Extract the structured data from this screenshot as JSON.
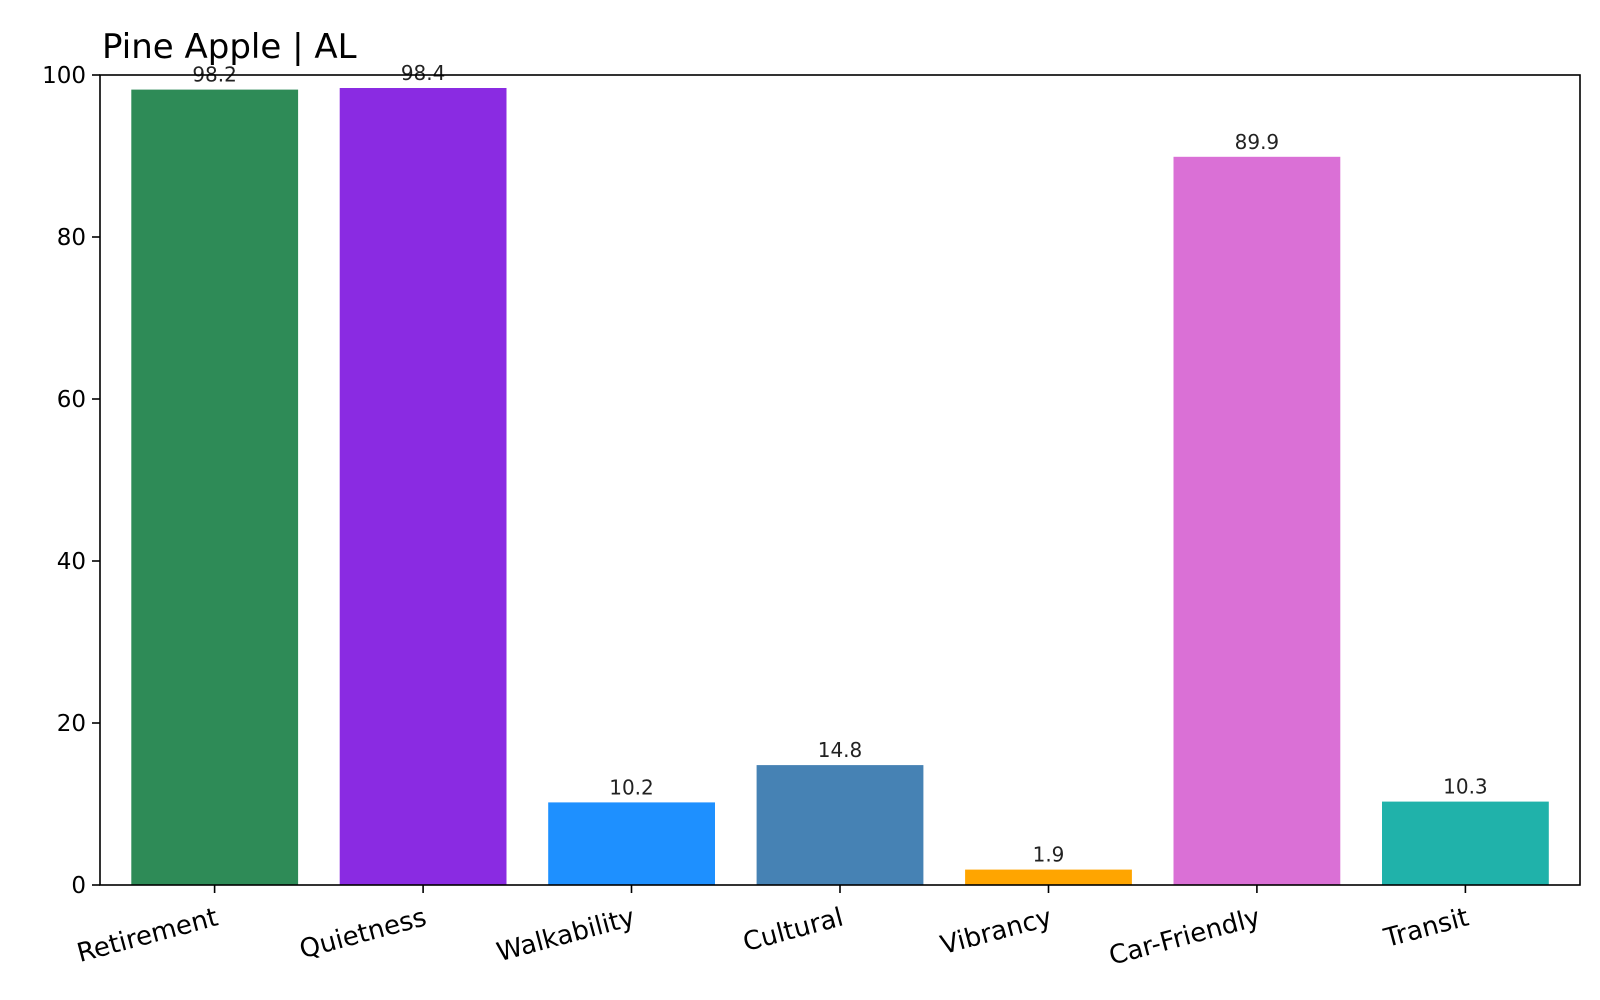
{
  "chart_data": {
    "type": "bar",
    "title": "Pine Apple | AL",
    "xlabel": "",
    "ylabel": "",
    "categories": [
      "Retirement",
      "Quietness",
      "Walkability",
      "Cultural",
      "Vibrancy",
      "Car-Friendly",
      "Transit"
    ],
    "values": [
      98.2,
      98.4,
      10.2,
      14.8,
      1.9,
      89.9,
      10.3
    ],
    "value_labels": [
      "98.2",
      "98.4",
      "10.2",
      "14.8",
      "1.9",
      "89.9",
      "10.3"
    ],
    "colors": [
      "#2e8b57",
      "#8a2be2",
      "#1e90ff",
      "#4682b4",
      "#ffa500",
      "#da70d6",
      "#20b2aa"
    ],
    "ylim": [
      0,
      100
    ],
    "yticks": [
      0,
      20,
      40,
      60,
      80,
      100
    ],
    "ytick_labels": [
      "0",
      "20",
      "40",
      "60",
      "80",
      "100"
    ],
    "grid": false,
    "legend": "none"
  }
}
